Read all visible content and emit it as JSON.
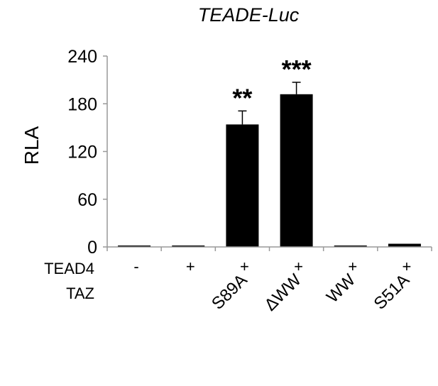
{
  "chart_data": {
    "type": "bar",
    "title": "TEADE-Luc",
    "ylabel": "RLA",
    "xlabel": "",
    "ylim": [
      0,
      240
    ],
    "yticks": [
      0,
      60,
      120,
      180,
      240
    ],
    "grid": false,
    "bar_color": "#000000",
    "categories": [
      "",
      "",
      "S89A",
      "ΔWW",
      "WW",
      "S51A"
    ],
    "values": [
      1,
      1,
      154,
      192,
      1,
      4
    ],
    "errors": [
      0,
      0,
      17,
      15,
      0,
      0
    ],
    "significance": [
      "",
      "",
      "**",
      "***",
      "",
      ""
    ],
    "row_labels": [
      "TEAD4",
      "TAZ"
    ],
    "tead4": [
      "-",
      "+",
      "+",
      "+",
      "+",
      "+"
    ]
  }
}
